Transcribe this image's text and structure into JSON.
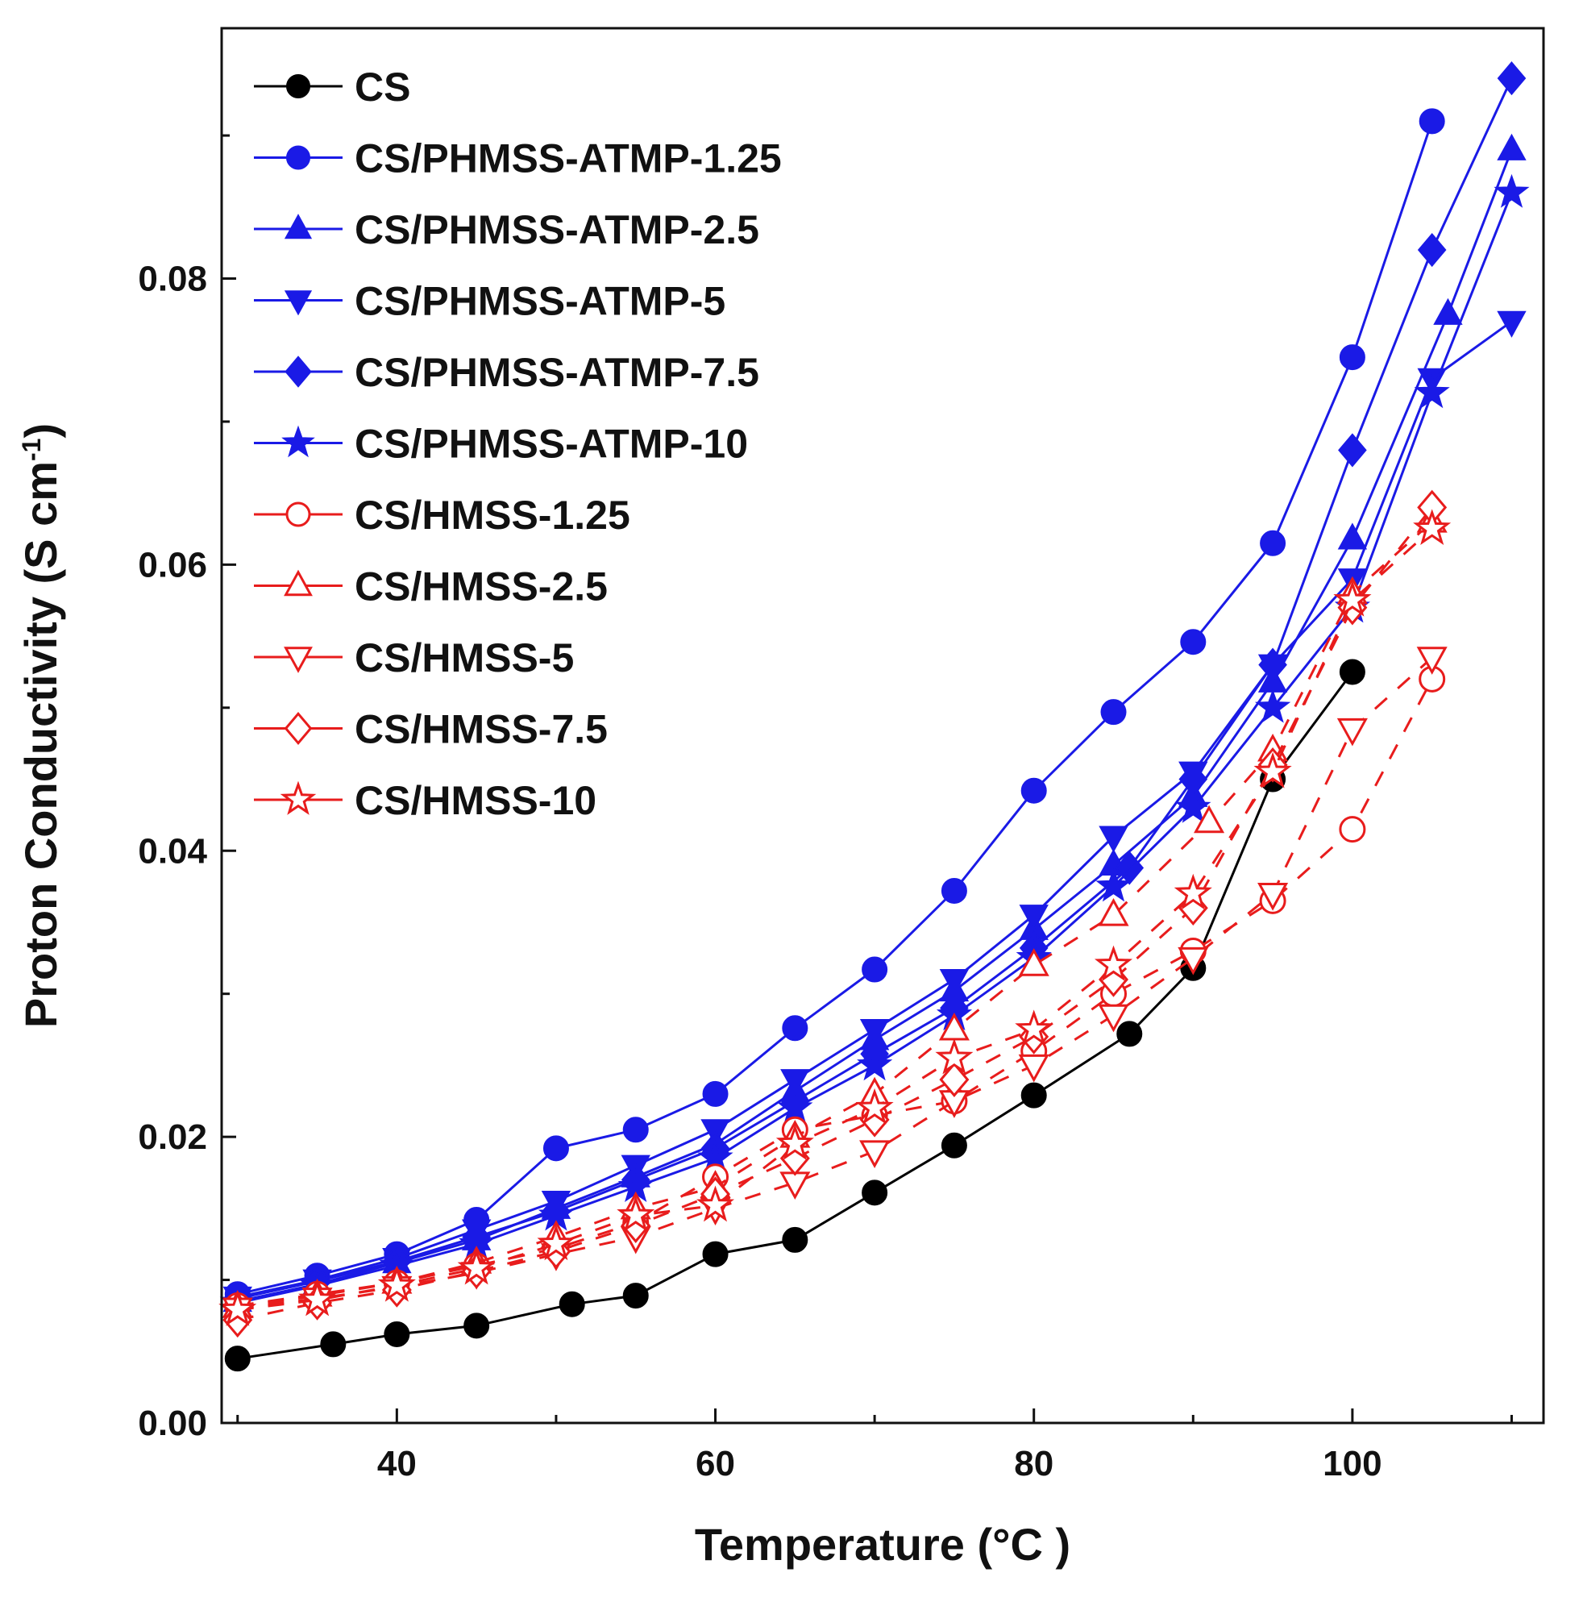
{
  "chart_data": {
    "type": "line",
    "title": "",
    "xlabel": "Temperature (°C )",
    "ylabel": "Proton Conductivity (S cm",
    "ylabel_sup": "-1",
    "ylabel_close": ")",
    "xlim": [
      29,
      112
    ],
    "ylim": [
      0,
      0.0975
    ],
    "xticks": [
      40,
      60,
      80,
      100
    ],
    "xtick_labels": [
      "40",
      "60",
      "80",
      "100"
    ],
    "yticks": [
      0,
      0.02,
      0.04,
      0.06,
      0.08
    ],
    "ytick_labels": [
      "0.00",
      "0.02",
      "0.04",
      "0.06",
      "0.08"
    ],
    "legend_position": "top-left",
    "series": [
      {
        "name": "CS",
        "color": "#000000",
        "marker": "circle",
        "filled": true,
        "dashed": false,
        "x": [
          30,
          36,
          40,
          45,
          51,
          55,
          60,
          65,
          70,
          75,
          80,
          86,
          90,
          95,
          100
        ],
        "y": [
          0.0045,
          0.0055,
          0.0062,
          0.0068,
          0.0083,
          0.0089,
          0.0118,
          0.0128,
          0.0161,
          0.0194,
          0.0229,
          0.0272,
          0.0318,
          0.045,
          0.0525
        ]
      },
      {
        "name": "CS/PHMSS-ATMP-1.25",
        "color": "#1a1ae6",
        "marker": "circle",
        "filled": true,
        "dashed": false,
        "x": [
          30,
          35,
          40,
          45,
          50,
          55,
          60,
          65,
          70,
          75,
          80,
          85,
          90,
          95,
          100,
          105
        ],
        "y": [
          0.009,
          0.0103,
          0.0118,
          0.0142,
          0.0192,
          0.0205,
          0.023,
          0.0276,
          0.0317,
          0.0372,
          0.0442,
          0.0497,
          0.0546,
          0.0615,
          0.0745,
          0.091
        ]
      },
      {
        "name": "CS/PHMSS-ATMP-2.5",
        "color": "#1a1ae6",
        "marker": "triangle-up",
        "filled": true,
        "dashed": false,
        "x": [
          30,
          35,
          40,
          45,
          50,
          55,
          60,
          65,
          70,
          75,
          80,
          85,
          90,
          95,
          100,
          106,
          110
        ],
        "y": [
          0.0085,
          0.0097,
          0.0112,
          0.0128,
          0.015,
          0.0172,
          0.0195,
          0.0232,
          0.0268,
          0.0302,
          0.0345,
          0.039,
          0.0438,
          0.0518,
          0.0618,
          0.0775,
          0.089
        ]
      },
      {
        "name": "CS/PHMSS-ATMP-5",
        "color": "#1a1ae6",
        "marker": "triangle-down",
        "filled": true,
        "dashed": false,
        "x": [
          30,
          35,
          40,
          45,
          50,
          55,
          60,
          65,
          70,
          75,
          80,
          85,
          90,
          95,
          100,
          105,
          110
        ],
        "y": [
          0.0088,
          0.01,
          0.0115,
          0.0135,
          0.0155,
          0.018,
          0.0205,
          0.024,
          0.0275,
          0.031,
          0.0355,
          0.041,
          0.0455,
          0.053,
          0.059,
          0.073,
          0.077
        ]
      },
      {
        "name": "CS/PHMSS-ATMP-7.5",
        "color": "#1a1ae6",
        "marker": "diamond",
        "filled": true,
        "dashed": false,
        "x": [
          30,
          35,
          40,
          45,
          50,
          55,
          60,
          65,
          70,
          75,
          80,
          86,
          90,
          95,
          100,
          105,
          110
        ],
        "y": [
          0.0087,
          0.0099,
          0.0113,
          0.013,
          0.0148,
          0.017,
          0.0192,
          0.0225,
          0.0258,
          0.029,
          0.0332,
          0.0388,
          0.045,
          0.053,
          0.068,
          0.082,
          0.094
        ]
      },
      {
        "name": "CS/PHMSS-ATMP-10",
        "color": "#1a1ae6",
        "marker": "star",
        "filled": true,
        "dashed": false,
        "x": [
          30,
          35,
          40,
          45,
          50,
          55,
          60,
          65,
          70,
          75,
          80,
          85,
          90,
          95,
          100,
          105,
          110
        ],
        "y": [
          0.0084,
          0.0096,
          0.011,
          0.0125,
          0.0145,
          0.0165,
          0.0185,
          0.022,
          0.025,
          0.0285,
          0.0325,
          0.0375,
          0.043,
          0.05,
          0.057,
          0.072,
          0.086
        ]
      },
      {
        "name": "CS/HMSS-1.25",
        "color": "#e81c1c",
        "marker": "circle",
        "filled": false,
        "dashed": true,
        "x": [
          30,
          35,
          40,
          45,
          50,
          55,
          60,
          65,
          70,
          75,
          80,
          85,
          90,
          95,
          100,
          105
        ],
        "y": [
          0.0082,
          0.009,
          0.0098,
          0.011,
          0.0122,
          0.014,
          0.0172,
          0.0205,
          0.0215,
          0.0225,
          0.026,
          0.03,
          0.033,
          0.0365,
          0.0415,
          0.052
        ]
      },
      {
        "name": "CS/HMSS-2.5",
        "color": "#e81c1c",
        "marker": "triangle-up",
        "filled": false,
        "dashed": true,
        "x": [
          30,
          35,
          40,
          45,
          50,
          55,
          60,
          65,
          70,
          75,
          80,
          85,
          91,
          95,
          100,
          105
        ],
        "y": [
          0.0081,
          0.0089,
          0.0098,
          0.0112,
          0.013,
          0.015,
          0.0165,
          0.02,
          0.023,
          0.0275,
          0.032,
          0.0355,
          0.042,
          0.047,
          0.058,
          0.063
        ]
      },
      {
        "name": "CS/HMSS-5",
        "color": "#e81c1c",
        "marker": "triangle-down",
        "filled": false,
        "dashed": true,
        "x": [
          30,
          35,
          40,
          45,
          50,
          55,
          60,
          65,
          70,
          75,
          80,
          85,
          90,
          95,
          100,
          105
        ],
        "y": [
          0.008,
          0.0087,
          0.0095,
          0.0105,
          0.0118,
          0.013,
          0.015,
          0.0168,
          0.019,
          0.0225,
          0.025,
          0.0285,
          0.0325,
          0.037,
          0.0485,
          0.0535
        ]
      },
      {
        "name": "CS/HMSS-7.5",
        "color": "#e81c1c",
        "marker": "diamond",
        "filled": false,
        "dashed": true,
        "x": [
          30,
          35,
          40,
          45,
          50,
          55,
          60,
          65,
          70,
          75,
          80,
          85,
          90,
          95,
          100,
          105
        ],
        "y": [
          0.0072,
          0.0084,
          0.0093,
          0.0106,
          0.012,
          0.0138,
          0.016,
          0.0185,
          0.0212,
          0.024,
          0.027,
          0.031,
          0.036,
          0.046,
          0.057,
          0.064
        ]
      },
      {
        "name": "CS/HMSS-10",
        "color": "#e81c1c",
        "marker": "star",
        "filled": false,
        "dashed": true,
        "x": [
          30,
          35,
          40,
          45,
          50,
          55,
          60,
          65,
          70,
          75,
          80,
          85,
          90,
          95,
          100,
          105
        ],
        "y": [
          0.0079,
          0.0086,
          0.0096,
          0.0108,
          0.0125,
          0.0145,
          0.0152,
          0.0195,
          0.022,
          0.0255,
          0.0275,
          0.032,
          0.037,
          0.0455,
          0.0575,
          0.0625
        ]
      }
    ]
  }
}
